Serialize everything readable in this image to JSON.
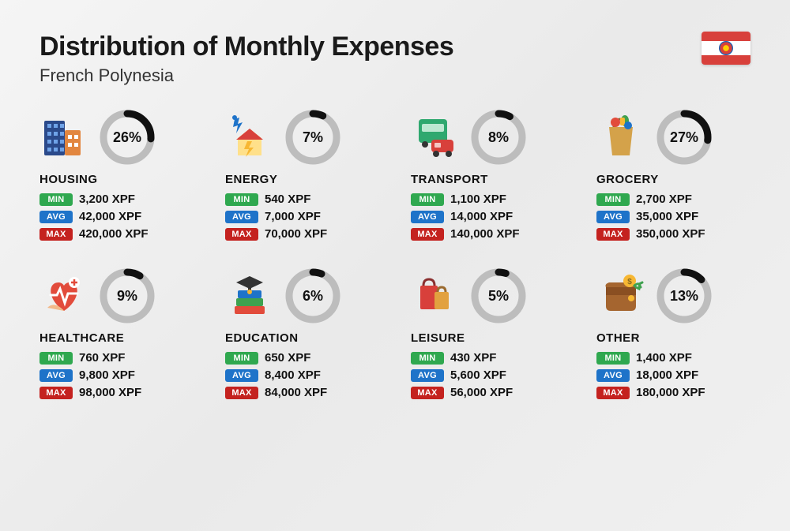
{
  "title": "Distribution of Monthly Expenses",
  "subtitle": "French Polynesia",
  "currency": "XPF",
  "donut": {
    "track_color": "#bdbdbd",
    "fill_color": "#111111",
    "stroke_width": 9,
    "radius": 30
  },
  "badges": {
    "min": {
      "label": "MIN",
      "bg": "#2fa84f"
    },
    "avg": {
      "label": "AVG",
      "bg": "#1e73c9"
    },
    "max": {
      "label": "MAX",
      "bg": "#c4221f"
    }
  },
  "flag": {
    "stripe_color": "#d8403b",
    "mid_color": "#ffffff"
  },
  "categories": [
    {
      "key": "housing",
      "name": "HOUSING",
      "pct": 26,
      "min": "3,200",
      "avg": "42,000",
      "max": "420,000",
      "icon": "housing-icon"
    },
    {
      "key": "energy",
      "name": "ENERGY",
      "pct": 7,
      "min": "540",
      "avg": "7,000",
      "max": "70,000",
      "icon": "energy-icon"
    },
    {
      "key": "transport",
      "name": "TRANSPORT",
      "pct": 8,
      "min": "1,100",
      "avg": "14,000",
      "max": "140,000",
      "icon": "transport-icon"
    },
    {
      "key": "grocery",
      "name": "GROCERY",
      "pct": 27,
      "min": "2,700",
      "avg": "35,000",
      "max": "350,000",
      "icon": "grocery-icon"
    },
    {
      "key": "healthcare",
      "name": "HEALTHCARE",
      "pct": 9,
      "min": "760",
      "avg": "9,800",
      "max": "98,000",
      "icon": "healthcare-icon"
    },
    {
      "key": "education",
      "name": "EDUCATION",
      "pct": 6,
      "min": "650",
      "avg": "8,400",
      "max": "84,000",
      "icon": "education-icon"
    },
    {
      "key": "leisure",
      "name": "LEISURE",
      "pct": 5,
      "min": "430",
      "avg": "5,600",
      "max": "56,000",
      "icon": "leisure-icon"
    },
    {
      "key": "other",
      "name": "OTHER",
      "pct": 13,
      "min": "1,400",
      "avg": "18,000",
      "max": "180,000",
      "icon": "other-icon"
    }
  ]
}
